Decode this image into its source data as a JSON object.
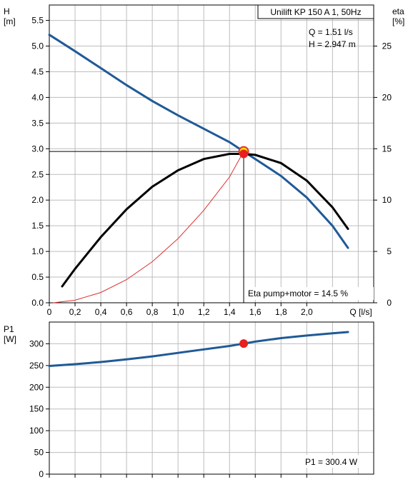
{
  "chart_data": [
    {
      "type": "line",
      "title": "Unilift KP 150 A 1, 50Hz",
      "operating_point": {
        "q_label": "Q = 1.51 l/s",
        "h_label": "H = 2.947 m",
        "q": 1.51,
        "h": 2.947
      },
      "xlabel": "Q [l/s]",
      "x_ticks": [
        "0",
        "0,2",
        "0,4",
        "0,6",
        "0,8",
        "1,0",
        "1,2",
        "1,4",
        "1,6",
        "1,8",
        "2,0"
      ],
      "xlim": [
        0,
        2.52
      ],
      "ylabel_left": {
        "name": "H",
        "unit": "[m]"
      },
      "ylim_left": [
        0,
        5.8
      ],
      "yticks_left": [
        "0.0",
        "0.5",
        "1.0",
        "1.5",
        "2.0",
        "2.5",
        "3.0",
        "3.5",
        "4.0",
        "4.5",
        "5.0",
        "5.5"
      ],
      "ylabel_right": {
        "name": "eta",
        "unit": "[%]"
      },
      "ylim_right": [
        0,
        29
      ],
      "yticks_right": [
        "0",
        "5",
        "10",
        "15",
        "20",
        "25"
      ],
      "eta_annotation": "Eta pump+motor = 14.5 %",
      "grid": true,
      "colors": {
        "head": "#1f5a96",
        "eta": "#000000",
        "system": "#e03030",
        "point": "#e82020",
        "grid": "#bdbdbd"
      },
      "series": [
        {
          "key": "head",
          "axis": "left",
          "x": [
            0.0,
            0.2,
            0.4,
            0.6,
            0.8,
            1.0,
            1.2,
            1.4,
            1.51,
            1.6,
            1.8,
            2.0,
            2.2,
            2.32
          ],
          "y": [
            5.22,
            4.9,
            4.57,
            4.24,
            3.93,
            3.65,
            3.39,
            3.13,
            2.947,
            2.8,
            2.47,
            2.05,
            1.5,
            1.07
          ]
        },
        {
          "key": "eta",
          "axis": "right",
          "x": [
            0.1,
            0.2,
            0.4,
            0.6,
            0.8,
            1.0,
            1.2,
            1.4,
            1.51,
            1.6,
            1.8,
            2.0,
            2.2,
            2.32
          ],
          "y": [
            1.6,
            3.3,
            6.4,
            9.1,
            11.3,
            12.9,
            14.0,
            14.5,
            14.5,
            14.4,
            13.6,
            11.9,
            9.3,
            7.2
          ]
        },
        {
          "key": "system",
          "axis": "left",
          "x": [
            0.03,
            0.2,
            0.4,
            0.6,
            0.8,
            1.0,
            1.2,
            1.4,
            1.51
          ],
          "y": [
            0.0,
            0.05,
            0.2,
            0.45,
            0.8,
            1.25,
            1.8,
            2.45,
            2.947
          ]
        }
      ]
    },
    {
      "type": "line",
      "ylabel": {
        "name": "P1",
        "unit": "[W]"
      },
      "ylim": [
        0,
        350
      ],
      "yticks": [
        "0",
        "50",
        "100",
        "150",
        "200",
        "250",
        "300"
      ],
      "annotation": "P1 = 300.4 W",
      "operating_point": {
        "q": 1.51,
        "p1": 300.4
      },
      "grid": true,
      "series": [
        {
          "key": "power",
          "x": [
            0.0,
            0.2,
            0.4,
            0.6,
            0.8,
            1.0,
            1.2,
            1.4,
            1.51,
            1.6,
            1.8,
            2.0,
            2.2,
            2.32
          ],
          "y": [
            249,
            253,
            258,
            264,
            271,
            279,
            287,
            295,
            300.4,
            305,
            313,
            319,
            324,
            327
          ]
        }
      ]
    }
  ]
}
